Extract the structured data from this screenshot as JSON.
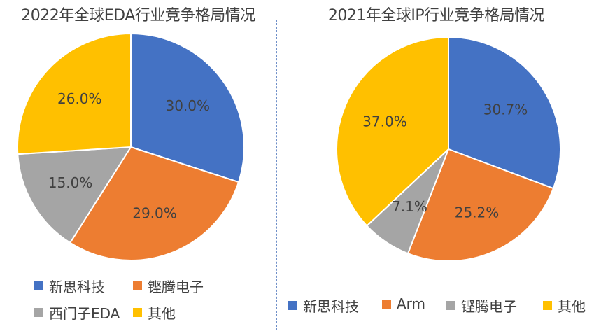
{
  "charts": [
    {
      "id": "left",
      "chart_data": {
        "type": "pie",
        "title": "2022年全球EDA行业竞争格局情况",
        "slices": [
          {
            "label": "新思科技",
            "value": 30.0,
            "display": "30.0%",
            "color": "#4472c4"
          },
          {
            "label": "铿腾电子",
            "value": 29.0,
            "display": "29.0%",
            "color": "#ed7d31"
          },
          {
            "label": "西门子EDA",
            "value": 15.0,
            "display": "15.0%",
            "color": "#a5a5a5"
          },
          {
            "label": "其他",
            "value": 26.0,
            "display": "26.0%",
            "color": "#ffc000"
          }
        ]
      }
    },
    {
      "id": "right",
      "chart_data": {
        "type": "pie",
        "title": "2021年全球IP行业竞争格局情况",
        "slices": [
          {
            "label": "新思科技",
            "value": 30.7,
            "display": "30.7%",
            "color": "#4472c4"
          },
          {
            "label": "Arm",
            "value": 25.2,
            "display": "25.2%",
            "color": "#ed7d31"
          },
          {
            "label": "铿腾电子",
            "value": 7.1,
            "display": "7.1%",
            "color": "#a5a5a5"
          },
          {
            "label": "其他",
            "value": 37.0,
            "display": "37.0%",
            "color": "#ffc000"
          }
        ]
      }
    }
  ]
}
